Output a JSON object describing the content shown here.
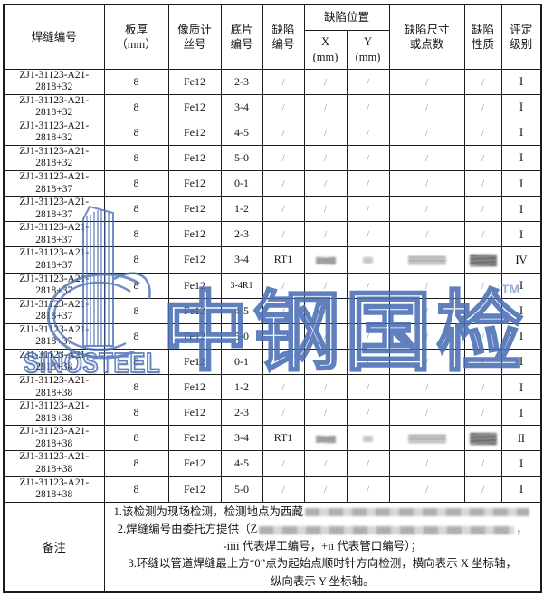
{
  "header": {
    "weld_no": "焊缝编号",
    "thickness_l1": "板厚",
    "thickness_l2": "（mm）",
    "iqi_l1": "像质计",
    "iqi_l2": "丝号",
    "film_l1": "底片",
    "film_l2": "编号",
    "defect_no_l1": "缺陷",
    "defect_no_l2": "编号",
    "defect_pos": "缺陷位置",
    "pos_x_l1": "X",
    "pos_x_l2": "(mm)",
    "pos_y_l1": "Y",
    "pos_y_l2": "(mm)",
    "size_l1": "缺陷尺寸",
    "size_l2": "或点数",
    "nature_l1": "缺陷",
    "nature_l2": "性质",
    "level_l1": "评定",
    "level_l2": "级别"
  },
  "rows": [
    {
      "weld_line1": "ZJ1-31123-A21-",
      "weld_line2": "2818+32",
      "thickness": "8",
      "iqi": "Fe12",
      "film": "2-3",
      "defect_no": "/",
      "x": "/",
      "y": "/",
      "size": "/",
      "nature": "/",
      "level": "I"
    },
    {
      "weld_line1": "ZJ1-31123-A21-",
      "weld_line2": "2818+32",
      "thickness": "8",
      "iqi": "Fe12",
      "film": "3-4",
      "defect_no": "/",
      "x": "/",
      "y": "/",
      "size": "/",
      "nature": "/",
      "level": "I"
    },
    {
      "weld_line1": "ZJ1-31123-A21-",
      "weld_line2": "2818+32",
      "thickness": "8",
      "iqi": "Fe12",
      "film": "4-5",
      "defect_no": "/",
      "x": "/",
      "y": "/",
      "size": "/",
      "nature": "/",
      "level": "I"
    },
    {
      "weld_line1": "ZJ1-31123-A21-",
      "weld_line2": "2818+32",
      "thickness": "8",
      "iqi": "Fe12",
      "film": "5-0",
      "defect_no": "/",
      "x": "/",
      "y": "/",
      "size": "/",
      "nature": "/",
      "level": "I"
    },
    {
      "weld_line1": "ZJ1-31123-A21-",
      "weld_line2": "2818+37",
      "thickness": "8",
      "iqi": "Fe12",
      "film": "0-1",
      "defect_no": "/",
      "x": "/",
      "y": "/",
      "size": "/",
      "nature": "/",
      "level": "I"
    },
    {
      "weld_line1": "ZJ1-31123-A21-",
      "weld_line2": "2818+37",
      "thickness": "8",
      "iqi": "Fe12",
      "film": "1-2",
      "defect_no": "/",
      "x": "/",
      "y": "/",
      "size": "/",
      "nature": "/",
      "level": "I"
    },
    {
      "weld_line1": "ZJ1-31123-A21-",
      "weld_line2": "2818+37",
      "thickness": "8",
      "iqi": "Fe12",
      "film": "2-3",
      "defect_no": "/",
      "x": "/",
      "y": "/",
      "size": "/",
      "nature": "/",
      "level": "I"
    },
    {
      "weld_line1": "ZJ1-31123-A21-",
      "weld_line2": "2818+37",
      "thickness": "8",
      "iqi": "Fe12",
      "film": "3-4",
      "defect_no": "RT1",
      "x": null,
      "y": null,
      "size": null,
      "nature": null,
      "level": "IV"
    },
    {
      "weld_line1": "ZJ1-31123-A21-",
      "weld_line2": "2818+37",
      "thickness": "8",
      "iqi": "Fe12",
      "film": "3-4R1",
      "defect_no": "/",
      "x": "/",
      "y": "/",
      "size": "/",
      "nature": "/",
      "level": "I"
    },
    {
      "weld_line1": "ZJ1-31123-A21-",
      "weld_line2": "2818+37",
      "thickness": "8",
      "iqi": "Fe12",
      "film": "4-5",
      "defect_no": "/",
      "x": "/",
      "y": "/",
      "size": "/",
      "nature": "/",
      "level": "I"
    },
    {
      "weld_line1": "ZJ1-31123-A21-",
      "weld_line2": "2818+37",
      "thickness": "8",
      "iqi": "Fe12",
      "film": "5-0",
      "defect_no": "/",
      "x": "/",
      "y": "/",
      "size": "/",
      "nature": "/",
      "level": "I"
    },
    {
      "weld_line1": "ZJ1-31123-A21-",
      "weld_line2": "2818+38",
      "thickness": "8",
      "iqi": "Fe12",
      "film": "0-1",
      "defect_no": "/",
      "x": "/",
      "y": "/",
      "size": "/",
      "nature": "/",
      "level": "I"
    },
    {
      "weld_line1": "ZJ1-31123-A21-",
      "weld_line2": "2818+38",
      "thickness": "8",
      "iqi": "Fe12",
      "film": "1-2",
      "defect_no": "/",
      "x": "/",
      "y": "/",
      "size": "/",
      "nature": "/",
      "level": "I"
    },
    {
      "weld_line1": "ZJ1-31123-A21-",
      "weld_line2": "2818+38",
      "thickness": "8",
      "iqi": "Fe12",
      "film": "2-3",
      "defect_no": "/",
      "x": "/",
      "y": "/",
      "size": "/",
      "nature": "/",
      "level": "I"
    },
    {
      "weld_line1": "ZJ1-31123-A21-",
      "weld_line2": "2818+38",
      "thickness": "8",
      "iqi": "Fe12",
      "film": "3-4",
      "defect_no": "RT1",
      "x": null,
      "y": null,
      "size": null,
      "nature": null,
      "level": "II"
    },
    {
      "weld_line1": "ZJ1-31123-A21-",
      "weld_line2": "2818+38",
      "thickness": "8",
      "iqi": "Fe12",
      "film": "4-5",
      "defect_no": "/",
      "x": "/",
      "y": "/",
      "size": "/",
      "nature": "/",
      "level": "I"
    },
    {
      "weld_line1": "ZJ1-31123-A21-",
      "weld_line2": "2818+38",
      "thickness": "8",
      "iqi": "Fe12",
      "film": "5-0",
      "defect_no": "/",
      "x": "/",
      "y": "/",
      "size": "/",
      "nature": "/",
      "level": "I"
    }
  ],
  "remarks": {
    "label": "备注",
    "lines": [
      {
        "pre": "1.该检测为现场检测，检测地点为西藏",
        "smudge": "n1",
        "post": ""
      },
      {
        "pre": "2.焊缝编号由委托方提供（Z",
        "smudge": "n2",
        "post": "，"
      },
      {
        "pre": "-iiii 代表焊工编号，+ii 代表管口编号）；",
        "smudge": null,
        "post": ""
      },
      {
        "pre": "3.环缝以管道焊缝最上方“0”点为起始点顺时针方向检测，横向表示 X 坐标轴，",
        "smudge": null,
        "post": ""
      },
      {
        "pre": "纵向表示 Y 坐标轴。",
        "smudge": null,
        "post": ""
      }
    ]
  },
  "watermark": {
    "brand_cn": "中钢国检",
    "brand_en": "SINOSTEEL",
    "tm": "TM",
    "color": "#4a6fb5"
  }
}
